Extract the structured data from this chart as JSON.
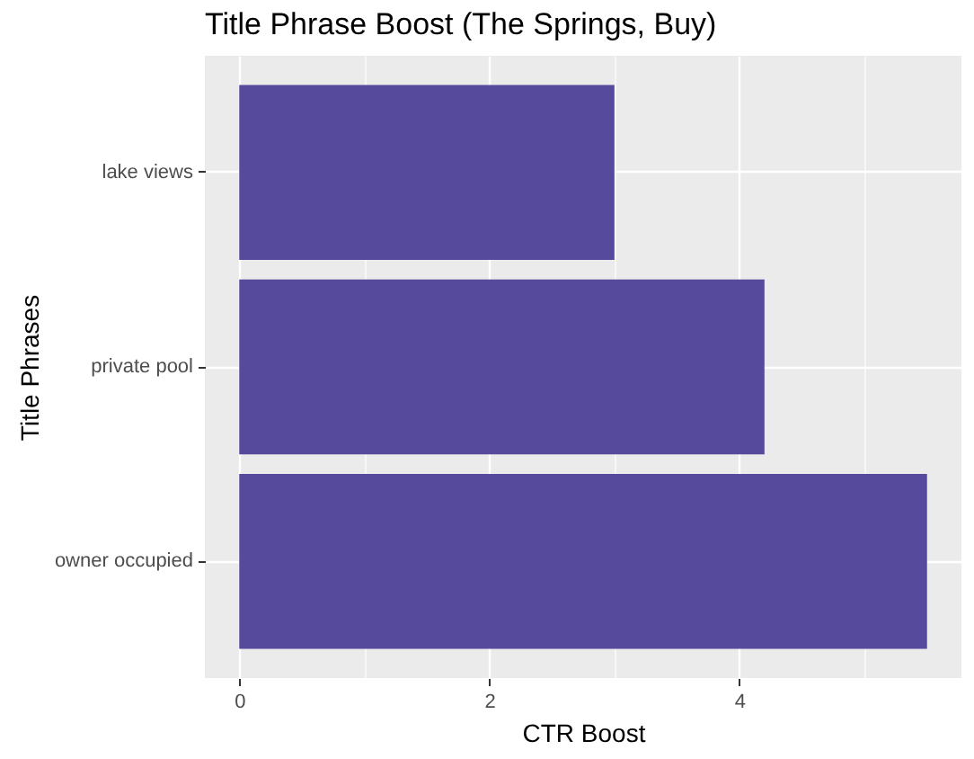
{
  "chart_data": {
    "type": "bar",
    "orientation": "horizontal",
    "title": "Title Phrase Boost (The Springs, Buy)",
    "xlabel": "CTR Boost",
    "ylabel": "Title Phrases",
    "categories": [
      "lake views",
      "private pool",
      "owner occupied"
    ],
    "values": [
      3.0,
      4.2,
      5.5
    ],
    "color": "#554a9c",
    "xlim": [
      -0.275,
      5.775
    ],
    "xticks": [
      0,
      {
        "value": 1,
        "label": null
      },
      2,
      {
        "value": 3,
        "label": null
      },
      4,
      {
        "value": 5,
        "label": null
      }
    ],
    "grid": true
  }
}
